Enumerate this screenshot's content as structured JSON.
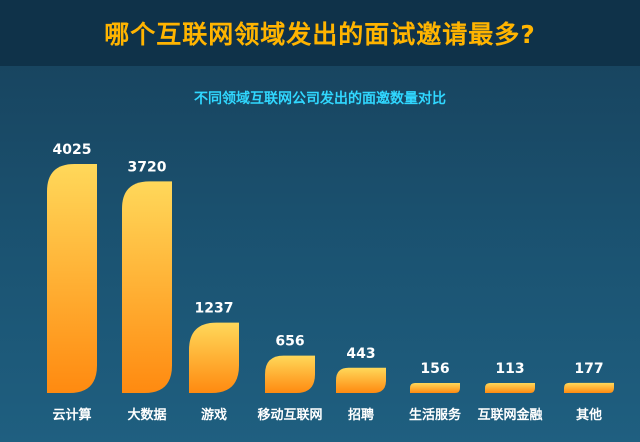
{
  "header": {
    "title": "哪个互联网领域发出的面试邀请最多?"
  },
  "chart_data": {
    "type": "bar",
    "title": "不同领域互联网公司发出的面邀数量对比",
    "categories": [
      "云计算",
      "大数据",
      "游戏",
      "移动互联网",
      "招聘",
      "生活服务",
      "互联网金融",
      "其他"
    ],
    "values": [
      4025,
      3720,
      1237,
      656,
      443,
      156,
      113,
      177
    ],
    "ylim": [
      0,
      4025
    ],
    "grid": false,
    "legend": "none",
    "colors": {
      "bar_top": "#ffd85a",
      "bar_bottom": "#ff8a10",
      "title": "#ffb400",
      "subtitle": "#30d7ff"
    }
  }
}
